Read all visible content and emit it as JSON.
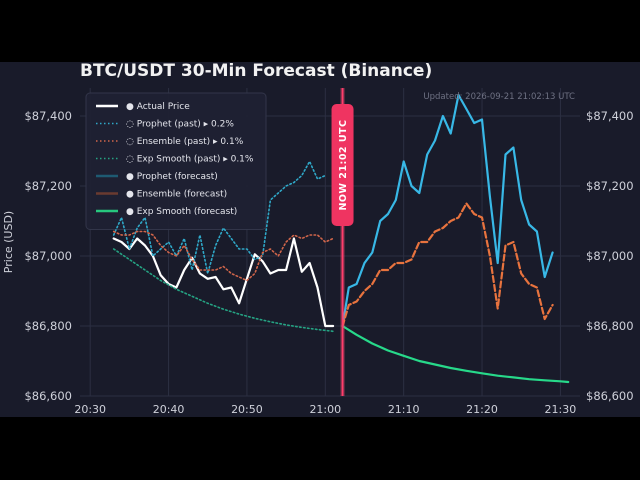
{
  "chart_data": {
    "type": "line",
    "title": "BTC/USDT 30-Min Forecast (Binance)",
    "updated": "Updated: 2026-09-21 21:02:13 UTC",
    "ylabel": "Price (USD)",
    "xlabel": "",
    "ylim": [
      86600,
      87480
    ],
    "yticks": [
      "$86,600",
      "$86,800",
      "$87,000",
      "$87,200",
      "$87,400"
    ],
    "ytick_values": [
      86600,
      86800,
      87000,
      87200,
      87400
    ],
    "xticks": [
      "20:30",
      "20:40",
      "20:50",
      "21:00",
      "21:10",
      "21:20",
      "21:30"
    ],
    "xtick_minutes": [
      0,
      10,
      20,
      30,
      40,
      50,
      60
    ],
    "x_range_minutes": [
      -1.3,
      62.5
    ],
    "now_label": "NOW 21:02 UTC",
    "now_minute": 32.2,
    "grid": true,
    "legend_position": "top-left",
    "legend": [
      {
        "label": "● Actual Price",
        "color": "#ffffff",
        "style": "solid"
      },
      {
        "label": "◌ Prophet (past)  ▸ 0.2%",
        "color": "#2fa8c8",
        "style": "dotted"
      },
      {
        "label": "◌ Ensemble (past)  ▸ 0.1%",
        "color": "#d0654a",
        "style": "dotted"
      },
      {
        "label": "◌ Exp Smooth (past)  ▸ 0.1%",
        "color": "#25a383",
        "style": "dotted"
      },
      {
        "label": "● Prophet (forecast)",
        "color": "#1e5a72",
        "style": "solid"
      },
      {
        "label": "● Ensemble (forecast)",
        "color": "#6a3a30",
        "style": "solid"
      },
      {
        "label": "● Exp Smooth (forecast)",
        "color": "#27c77e",
        "style": "solid"
      }
    ],
    "series": [
      {
        "name": "Actual Price",
        "color": "#ffffff",
        "x": [
          3,
          4,
          5,
          6,
          7,
          8,
          9,
          10,
          11,
          12,
          13,
          14,
          15,
          16,
          17,
          18,
          19,
          20,
          21,
          22,
          23,
          24,
          25,
          26,
          27,
          28,
          29,
          30,
          31
        ],
        "y": [
          87050,
          87040,
          87020,
          87050,
          87030,
          87000,
          86945,
          86920,
          86910,
          86960,
          86995,
          86950,
          86935,
          86940,
          86905,
          86910,
          86865,
          86935,
          87005,
          86985,
          86950,
          86960,
          86960,
          87050,
          86955,
          86980,
          86910,
          86800,
          86800
        ]
      },
      {
        "name": "Prophet (past)",
        "color": "#2fa8c8",
        "x": [
          3,
          4,
          5,
          6,
          7,
          8,
          9,
          10,
          11,
          12,
          13,
          14,
          15,
          16,
          17,
          18,
          19,
          20,
          21,
          22,
          23,
          24,
          25,
          26,
          27,
          28,
          29,
          30
        ],
        "y": [
          87060,
          87110,
          87020,
          87080,
          87110,
          87000,
          87020,
          87040,
          87000,
          87050,
          86960,
          87060,
          86950,
          87030,
          87080,
          87050,
          87020,
          87020,
          86990,
          87000,
          87160,
          87180,
          87200,
          87210,
          87230,
          87270,
          87220,
          87230
        ]
      },
      {
        "name": "Ensemble (past)",
        "color": "#d0654a",
        "x": [
          3,
          4,
          5,
          6,
          7,
          8,
          9,
          10,
          11,
          12,
          13,
          14,
          15,
          16,
          17,
          18,
          19,
          20,
          21,
          22,
          23,
          24,
          25,
          26,
          27,
          28,
          29,
          30,
          31
        ],
        "y": [
          87070,
          87060,
          87060,
          87070,
          87070,
          87060,
          87030,
          87010,
          87000,
          87030,
          86990,
          86960,
          86960,
          86960,
          86970,
          86950,
          86940,
          86930,
          86950,
          87010,
          87020,
          87000,
          87040,
          87060,
          87050,
          87060,
          87060,
          87040,
          87050
        ]
      },
      {
        "name": "Exp Smooth (past)",
        "color": "#25a383",
        "x": [
          3,
          5,
          7,
          9,
          11,
          13,
          15,
          17,
          19,
          21,
          23,
          25,
          27,
          29,
          31
        ],
        "y": [
          87020,
          86990,
          86960,
          86930,
          86905,
          86885,
          86865,
          86848,
          86834,
          86822,
          86812,
          86803,
          86796,
          86790,
          86785
        ]
      },
      {
        "name": "Prophet (forecast)",
        "color": "#38b8e6",
        "x": [
          32.2,
          33,
          34,
          35,
          36,
          37,
          38,
          39,
          40,
          41,
          42,
          43,
          44,
          45,
          46,
          47,
          48,
          49,
          50,
          51,
          52,
          53,
          54,
          55,
          56,
          57,
          58,
          59,
          60,
          61
        ],
        "y": [
          86800,
          86910,
          86920,
          86980,
          87010,
          87100,
          87120,
          87160,
          87270,
          87200,
          87180,
          87290,
          87330,
          87400,
          87350,
          87460,
          87420,
          87380,
          87390,
          87170,
          86980,
          87290,
          87310,
          87160,
          87090,
          87070,
          86940,
          87010,
          null,
          null
        ]
      },
      {
        "name": "Ensemble (forecast)",
        "color": "#e8733e",
        "x": [
          32.2,
          33,
          34,
          35,
          36,
          37,
          38,
          39,
          40,
          41,
          42,
          43,
          44,
          45,
          46,
          47,
          48,
          49,
          50,
          51,
          52,
          53,
          54,
          55,
          56,
          57,
          58,
          59,
          60,
          61
        ],
        "y": [
          86800,
          86860,
          86870,
          86900,
          86920,
          86960,
          86960,
          86980,
          86980,
          86990,
          87040,
          87040,
          87070,
          87080,
          87100,
          87110,
          87150,
          87120,
          87110,
          87000,
          86850,
          87030,
          87040,
          86950,
          86920,
          86910,
          86820,
          86860,
          null,
          null
        ]
      },
      {
        "name": "Exp Smooth (forecast)",
        "color": "#27d98a",
        "x": [
          32.2,
          34,
          36,
          38,
          40,
          42,
          44,
          46,
          48,
          50,
          52,
          54,
          56,
          58,
          60,
          61
        ],
        "y": [
          86800,
          86775,
          86750,
          86730,
          86715,
          86700,
          86690,
          86680,
          86672,
          86665,
          86658,
          86653,
          86648,
          86645,
          86642,
          86640
        ]
      }
    ]
  }
}
